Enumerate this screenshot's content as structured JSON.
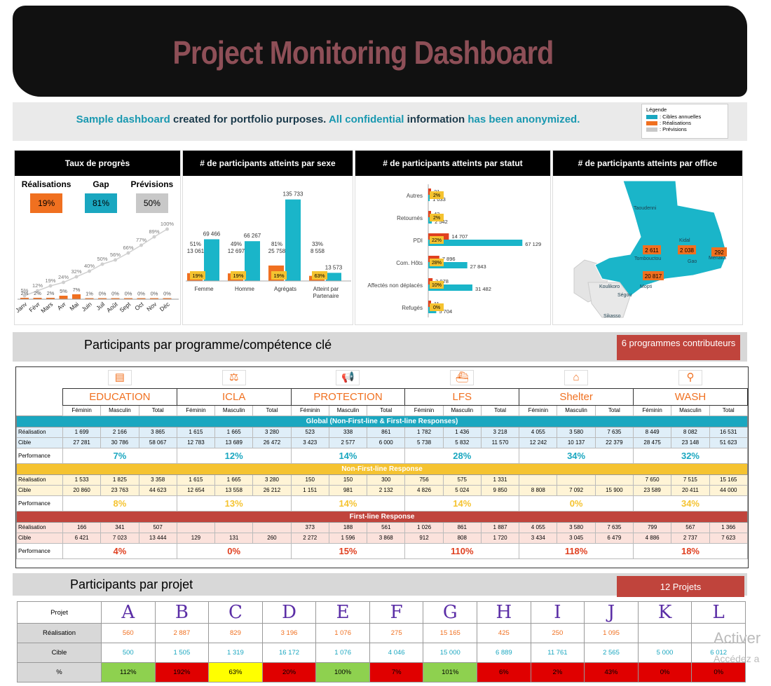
{
  "header": {
    "title": "Project Monitoring Dashboard",
    "subtitle_parts": [
      "Sample dashboard ",
      "created for ",
      "portfolio purposes. ",
      "All confidential ",
      "information ",
      "has been anonymized."
    ]
  },
  "legend": {
    "title": "Légende",
    "items": [
      {
        "label": ": Cibles annuelles",
        "color": "#1aa7c0"
      },
      {
        "label": ": Réalisations",
        "color": "#f07020"
      },
      {
        "label": ": Prévisions",
        "color": "#c8c8c8"
      }
    ]
  },
  "panels": {
    "progress": {
      "title": "Taux de progrès",
      "kpis": [
        {
          "label": "Réalisations",
          "value": "19%",
          "color": "#f07020"
        },
        {
          "label": "Gap",
          "value": "81%",
          "color": "#1aa7c0"
        },
        {
          "label": "Prévisions",
          "value": "50%",
          "color": "#c8c8c8"
        }
      ]
    },
    "sex": {
      "title": "# de participants atteints par sexe"
    },
    "status": {
      "title": "# de participants atteints par statut"
    },
    "office": {
      "title": "# de participants atteints par office",
      "regions": [
        "Taoudenni",
        "Kidal",
        "Tombouctou",
        "Gao",
        "Ménaka",
        "Mopti",
        "Koulikoro",
        "Ségou",
        "Sikasso"
      ],
      "values": [
        {
          "label": "2 611",
          "region": "Tombouctou"
        },
        {
          "label": "2 038",
          "region": "Gao"
        },
        {
          "label": "292",
          "region": "Ménaka"
        },
        {
          "label": "20 817",
          "region": "Mopti"
        }
      ]
    }
  },
  "chart_data": [
    {
      "type": "line",
      "title": "Taux de progrès",
      "categories": [
        "Janv",
        "Févr",
        "Mars",
        "Avr",
        "Mai",
        "Juin",
        "Juil",
        "Août",
        "Sept",
        "Oct",
        "Nov",
        "Déc"
      ],
      "series": [
        {
          "name": "Prévisions",
          "values": [
            5,
            12,
            19,
            24,
            32,
            40,
            50,
            56,
            66,
            77,
            89,
            100
          ],
          "labels": [
            "5%",
            "12%",
            "19%",
            "24%",
            "32%",
            "40%",
            "50%",
            "56%",
            "66%",
            "77%",
            "89%",
            "100%"
          ]
        },
        {
          "name": "Réalisations",
          "values": [
            2,
            2,
            2,
            5,
            7,
            1,
            0,
            0,
            0,
            0,
            0,
            0
          ],
          "labels": [
            "2%",
            "2%",
            "2%",
            "5%",
            "7%",
            "1%",
            "0%",
            "0%",
            "0%",
            "0%",
            "0%",
            "0%"
          ]
        }
      ],
      "ylim": [
        0,
        100
      ]
    },
    {
      "type": "bar",
      "title": "# de participants atteints par sexe",
      "categories": [
        "Femme",
        "Homme",
        "Agrégats",
        "Atteint par Partenaire"
      ],
      "series": [
        {
          "name": "Réalisations",
          "values": [
            13061,
            12697,
            25758,
            8558
          ],
          "labels": [
            "13 061",
            "12 697",
            "25 758",
            "8 558"
          ],
          "pct": [
            "19%",
            "19%",
            "19%",
            "63%"
          ]
        },
        {
          "name": "Cibles annuelles",
          "values": [
            69466,
            66267,
            135733,
            13573
          ],
          "labels": [
            "69 466",
            "66 267",
            "135 733",
            "13 573"
          ]
        }
      ],
      "top_pct": [
        "51%",
        "49%",
        "81%",
        "33%"
      ]
    },
    {
      "type": "bar",
      "title": "# de participants atteints par statut",
      "orientation": "horizontal",
      "categories": [
        "Autres",
        "Retournés",
        "PDI",
        "Com. Hôts",
        "Affectés non déplacés",
        "Refugés"
      ],
      "series": [
        {
          "name": "Réalisations",
          "values": [
            21,
            43,
            14707,
            7896,
            3078,
            11
          ],
          "labels": [
            "21",
            "43",
            "14 707",
            "7 896",
            "3 078",
            "11"
          ]
        },
        {
          "name": "Cibles annuelles",
          "values": [
            1033,
            2542,
            67129,
            27843,
            31482,
            5704
          ],
          "labels": [
            "1 033",
            "2 542",
            "67 129",
            "27 843",
            "31 482",
            "5 704"
          ]
        }
      ],
      "pct": [
        "2%",
        "2%",
        "22%",
        "28%",
        "10%",
        "0%"
      ]
    }
  ],
  "section_programs": {
    "title": "Participants par programme/compétence clé",
    "badge": "6 programmes contributeurs"
  },
  "programs": {
    "names": [
      "EDUCATION",
      "ICLA",
      "PROTECTION",
      "LFS",
      "Shelter",
      "WASH"
    ],
    "icons": [
      "book-icon",
      "scales-icon",
      "megaphone-icon",
      "boat-icon",
      "house-icon",
      "tap-icon"
    ],
    "subheads": [
      "Féminin",
      "Masculin",
      "Total"
    ],
    "row_labels": {
      "real": "Réalisation",
      "cible": "Cible",
      "perf": "Performance"
    },
    "global": {
      "band": "Global (Non-First-line & First-line Responses)",
      "real": [
        [
          "1 699",
          "2 166",
          "3 865"
        ],
        [
          "1 615",
          "1 665",
          "3 280"
        ],
        [
          "523",
          "338",
          "861"
        ],
        [
          "1 782",
          "1 436",
          "3 218"
        ],
        [
          "4 055",
          "3 580",
          "7 635"
        ],
        [
          "8 449",
          "8 082",
          "16 531"
        ]
      ],
      "cible": [
        [
          "27 281",
          "30 786",
          "58 067"
        ],
        [
          "12 783",
          "13 689",
          "26 472"
        ],
        [
          "3 423",
          "2 577",
          "6 000"
        ],
        [
          "5 738",
          "5 832",
          "11 570"
        ],
        [
          "12 242",
          "10 137",
          "22 379"
        ],
        [
          "28 475",
          "23 148",
          "51 623"
        ]
      ],
      "perf": [
        "7%",
        "12%",
        "14%",
        "28%",
        "34%",
        "32%"
      ]
    },
    "nonfirst": {
      "band": "Non-First-line Response",
      "real": [
        [
          "1 533",
          "1 825",
          "3 358"
        ],
        [
          "1 615",
          "1 665",
          "3 280"
        ],
        [
          "150",
          "150",
          "300"
        ],
        [
          "756",
          "575",
          "1 331"
        ],
        [
          "",
          "",
          ""
        ],
        [
          "7 650",
          "7 515",
          "15 165"
        ]
      ],
      "cible": [
        [
          "20 860",
          "23 763",
          "44 623"
        ],
        [
          "12 654",
          "13 558",
          "26 212"
        ],
        [
          "1 151",
          "981",
          "2 132"
        ],
        [
          "4 826",
          "5 024",
          "9 850"
        ],
        [
          "8 808",
          "7 092",
          "15 900"
        ],
        [
          "23 589",
          "20 411",
          "44 000"
        ]
      ],
      "perf": [
        "8%",
        "13%",
        "14%",
        "14%",
        "0%",
        "34%"
      ]
    },
    "first": {
      "band": "First-line Response",
      "real": [
        [
          "166",
          "341",
          "507"
        ],
        [
          "",
          "",
          ""
        ],
        [
          "373",
          "188",
          "561"
        ],
        [
          "1 026",
          "861",
          "1 887"
        ],
        [
          "4 055",
          "3 580",
          "7 635"
        ],
        [
          "799",
          "567",
          "1 366"
        ]
      ],
      "cible": [
        [
          "6 421",
          "7 023",
          "13 444"
        ],
        [
          "129",
          "131",
          "260"
        ],
        [
          "2 272",
          "1 596",
          "3 868"
        ],
        [
          "912",
          "808",
          "1 720"
        ],
        [
          "3 434",
          "3 045",
          "6 479"
        ],
        [
          "4 886",
          "2 737",
          "7 623"
        ]
      ],
      "perf": [
        "4%",
        "0%",
        "15%",
        "110%",
        "118%",
        "18%"
      ]
    }
  },
  "section_projects": {
    "title": "Participants par projet",
    "badge": "12 Projets"
  },
  "projects": {
    "row_labels": {
      "projet": "Projet",
      "real": "Réalisation",
      "cible": "Cible",
      "pct": "%"
    },
    "names": [
      "A",
      "B",
      "C",
      "D",
      "E",
      "F",
      "G",
      "H",
      "I",
      "J",
      "K",
      "L"
    ],
    "real": [
      "560",
      "2 887",
      "829",
      "3 196",
      "1 076",
      "275",
      "15 165",
      "425",
      "250",
      "1 095",
      "",
      ""
    ],
    "cible": [
      "500",
      "1 505",
      "1 319",
      "16 172",
      "1 076",
      "4 046",
      "15 000",
      "6 889",
      "11 761",
      "2 565",
      "5 000",
      "6 012"
    ],
    "pct": [
      "112%",
      "192%",
      "63%",
      "20%",
      "100%",
      "7%",
      "101%",
      "6%",
      "2%",
      "43%",
      "0%",
      "0%"
    ],
    "pct_colors": [
      "#8ed14f",
      "#e00000",
      "#ffff00",
      "#e00000",
      "#8ed14f",
      "#e00000",
      "#8ed14f",
      "#e00000",
      "#e00000",
      "#e00000",
      "#e00000",
      "#e00000"
    ]
  },
  "watermark": {
    "line1": "Activer",
    "line2": "Accédez a"
  }
}
